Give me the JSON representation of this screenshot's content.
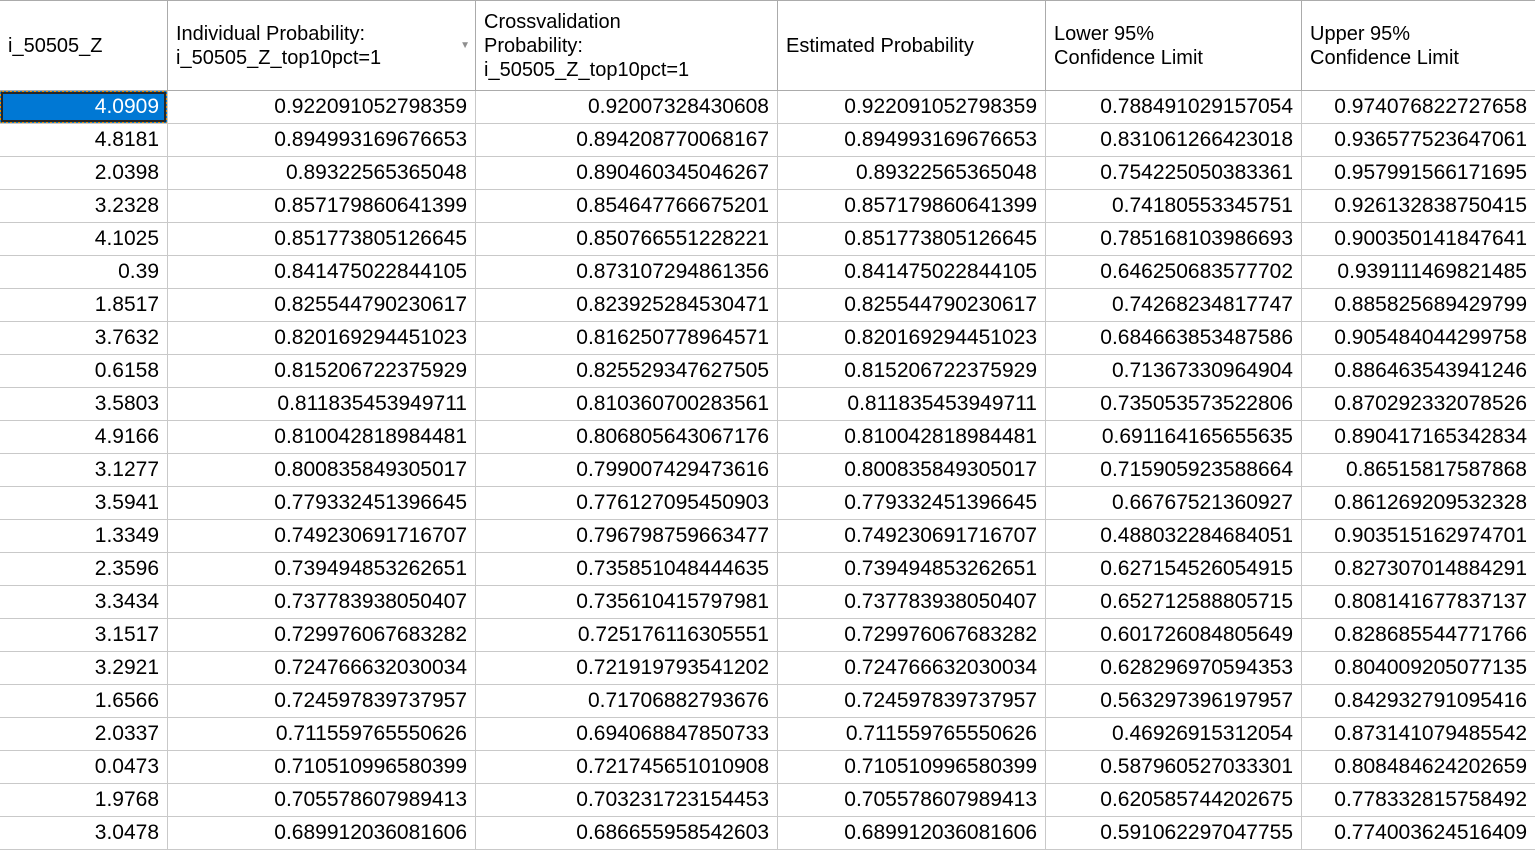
{
  "table": {
    "columns": [
      {
        "label": "i_50505_Z",
        "sort": "none"
      },
      {
        "label": "Individual Probability:\ni_50505_Z_top10pct=1",
        "sort": "descending"
      },
      {
        "label": "Crossvalidation\nProbability:\ni_50505_Z_top10pct=1",
        "sort": "none"
      },
      {
        "label": "Estimated Probability",
        "sort": "none"
      },
      {
        "label": "Lower 95%\nConfidence Limit",
        "sort": "none"
      },
      {
        "label": "Upper 95%\nConfidence Limit",
        "sort": "none"
      }
    ],
    "rows": [
      [
        "4.0909",
        "0.922091052798359",
        "0.92007328430608",
        "0.922091052798359",
        "0.788491029157054",
        "0.974076822727658"
      ],
      [
        "4.8181",
        "0.894993169676653",
        "0.894208770068167",
        "0.894993169676653",
        "0.831061266423018",
        "0.936577523647061"
      ],
      [
        "2.0398",
        "0.89322565365048",
        "0.890460345046267",
        "0.89322565365048",
        "0.754225050383361",
        "0.957991566171695"
      ],
      [
        "3.2328",
        "0.857179860641399",
        "0.854647766675201",
        "0.857179860641399",
        "0.74180553345751",
        "0.926132838750415"
      ],
      [
        "4.1025",
        "0.851773805126645",
        "0.850766551228221",
        "0.851773805126645",
        "0.785168103986693",
        "0.900350141847641"
      ],
      [
        "0.39",
        "0.841475022844105",
        "0.873107294861356",
        "0.841475022844105",
        "0.646250683577702",
        "0.939111469821485"
      ],
      [
        "1.8517",
        "0.825544790230617",
        "0.823925284530471",
        "0.825544790230617",
        "0.74268234817747",
        "0.885825689429799"
      ],
      [
        "3.7632",
        "0.820169294451023",
        "0.816250778964571",
        "0.820169294451023",
        "0.684663853487586",
        "0.905484044299758"
      ],
      [
        "0.6158",
        "0.815206722375929",
        "0.825529347627505",
        "0.815206722375929",
        "0.71367330964904",
        "0.886463543941246"
      ],
      [
        "3.5803",
        "0.811835453949711",
        "0.810360700283561",
        "0.811835453949711",
        "0.735053573522806",
        "0.870292332078526"
      ],
      [
        "4.9166",
        "0.810042818984481",
        "0.806805643067176",
        "0.810042818984481",
        "0.691164165655635",
        "0.890417165342834"
      ],
      [
        "3.1277",
        "0.800835849305017",
        "0.799007429473616",
        "0.800835849305017",
        "0.715905923588664",
        "0.86515817587868"
      ],
      [
        "3.5941",
        "0.779332451396645",
        "0.776127095450903",
        "0.779332451396645",
        "0.66767521360927",
        "0.861269209532328"
      ],
      [
        "1.3349",
        "0.749230691716707",
        "0.796798759663477",
        "0.749230691716707",
        "0.488032284684051",
        "0.903515162974701"
      ],
      [
        "2.3596",
        "0.739494853262651",
        "0.735851048444635",
        "0.739494853262651",
        "0.627154526054915",
        "0.827307014884291"
      ],
      [
        "3.3434",
        "0.737783938050407",
        "0.735610415797981",
        "0.737783938050407",
        "0.652712588805715",
        "0.808141677837137"
      ],
      [
        "3.1517",
        "0.729976067683282",
        "0.725176116305551",
        "0.729976067683282",
        "0.601726084805649",
        "0.828685544771766"
      ],
      [
        "3.2921",
        "0.724766632030034",
        "0.721919793541202",
        "0.724766632030034",
        "0.628296970594353",
        "0.804009205077135"
      ],
      [
        "1.6566",
        "0.724597839737957",
        "0.71706882793676",
        "0.724597839737957",
        "0.563297396197957",
        "0.842932791095416"
      ],
      [
        "2.0337",
        "0.711559765550626",
        "0.694068847850733",
        "0.711559765550626",
        "0.46926915312054",
        "0.873141079485542"
      ],
      [
        "0.0473",
        "0.710510996580399",
        "0.721745651010908",
        "0.710510996580399",
        "0.587960527033301",
        "0.808484624202659"
      ],
      [
        "1.9768",
        "0.705578607989413",
        "0.703231723154453",
        "0.705578607989413",
        "0.620585744202675",
        "0.778332815758492"
      ],
      [
        "3.0478",
        "0.689912036081606",
        "0.686655958542603",
        "0.689912036081606",
        "0.591062297047755",
        "0.774003624516409"
      ]
    ],
    "selected_cell": {
      "row": 0,
      "col": 0,
      "value": "4.0909"
    }
  },
  "icons": {
    "sort_descending": "▼"
  },
  "colors": {
    "selection_background": "#0078d4",
    "selection_text": "#ffffff",
    "marching_ants_orange": "#ef8d00",
    "marching_ants_dark": "#262626",
    "grid_line": "#c9c9c9",
    "header_line": "#ababab",
    "sort_icon": "#8f8f8f"
  }
}
